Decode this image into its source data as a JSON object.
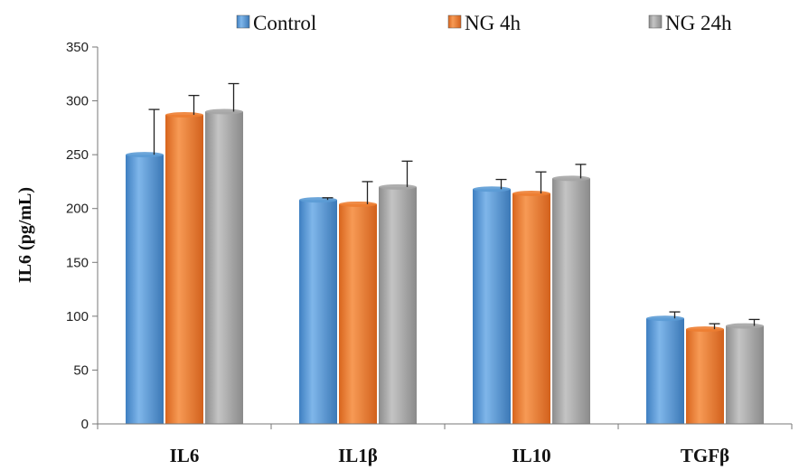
{
  "chart_data": {
    "type": "bar",
    "ylabel": "IL6 (pg/mL)",
    "xlabel": "",
    "ylim": [
      0,
      350
    ],
    "yticks": [
      "0",
      "50",
      "100",
      "150",
      "200",
      "250",
      "300",
      "350"
    ],
    "categories": [
      "IL6",
      "IL1β",
      "IL10",
      "TGFβ"
    ],
    "series": [
      {
        "name": "Control",
        "color": "#5b9bd5",
        "values": [
          250,
          208,
          218,
          98
        ],
        "errors": [
          42,
          2,
          9,
          6
        ]
      },
      {
        "name": "NG 4h",
        "color": "#ed7d31",
        "values": [
          287,
          204,
          214,
          88
        ],
        "errors": [
          18,
          21,
          20,
          5
        ]
      },
      {
        "name": "NG 24h",
        "color": "#a5a5a5",
        "values": [
          290,
          220,
          228,
          91
        ],
        "errors": [
          26,
          24,
          13,
          6
        ]
      }
    ],
    "legend_position": "top",
    "grid": false
  }
}
